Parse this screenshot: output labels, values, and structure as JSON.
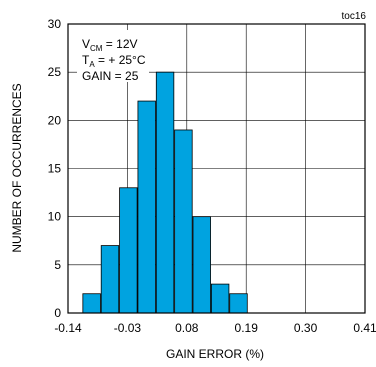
{
  "chart_data": {
    "type": "bar",
    "tag": "toc16",
    "xlabel": "GAIN ERROR (%)",
    "ylabel": "NUMBER OF OCCURRENCES",
    "xlim": [
      -0.14,
      0.41
    ],
    "ylim": [
      0,
      30
    ],
    "x_ticks": [
      "-0.14",
      "-0.03",
      "0.08",
      "0.19",
      "0.30",
      "0.41"
    ],
    "y_ticks": [
      "0",
      "5",
      "10",
      "15",
      "20",
      "25",
      "30"
    ],
    "grid": true,
    "bar_color": "#00a3e0",
    "bins": [
      {
        "x0": -0.1125,
        "x1": -0.08,
        "value": 2
      },
      {
        "x0": -0.0785,
        "x1": -0.046,
        "value": 7
      },
      {
        "x0": -0.0445,
        "x1": -0.012,
        "value": 13
      },
      {
        "x0": -0.0105,
        "x1": 0.022,
        "value": 22
      },
      {
        "x0": 0.0235,
        "x1": 0.056,
        "value": 25
      },
      {
        "x0": 0.0575,
        "x1": 0.09,
        "value": 19
      },
      {
        "x0": 0.0915,
        "x1": 0.124,
        "value": 10
      },
      {
        "x0": 0.1255,
        "x1": 0.158,
        "value": 3
      },
      {
        "x0": 0.1595,
        "x1": 0.192,
        "value": 2
      }
    ],
    "annotation": {
      "line1_main": "V",
      "line1_sub": "CM",
      "line1_rest": " = 12V",
      "line2_main": "T",
      "line2_sub": "A",
      "line2_rest": " = + 25°C",
      "line3": "GAIN = 25"
    }
  }
}
